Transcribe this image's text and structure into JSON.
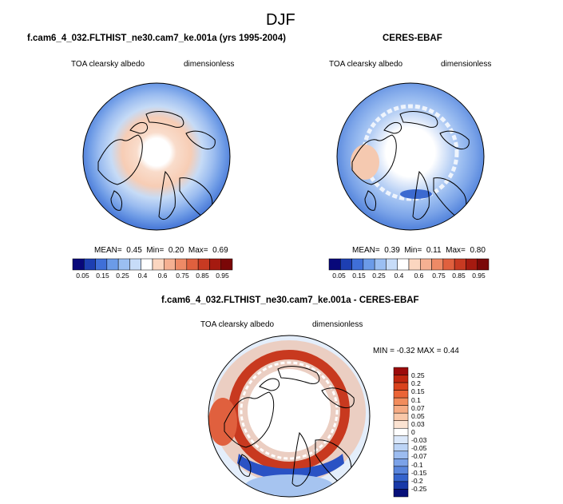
{
  "page_title": "DJF",
  "panels": [
    {
      "title": "f.cam6_4_032.FLTHIST_ne30.cam7_ke.001a (yrs 1995-2004)",
      "variable": "TOA clearsky albedo",
      "units": "dimensionless",
      "stats": {
        "mean_label": "MEAN=",
        "mean": "0.45",
        "min_label": "Min=",
        "min": "0.20",
        "max_label": "Max=",
        "max": "0.69"
      }
    },
    {
      "title": "CERES-EBAF",
      "variable": "TOA clearsky albedo",
      "units": "dimensionless",
      "stats": {
        "mean_label": "MEAN=",
        "mean": "0.39",
        "min_label": "Min=",
        "min": "0.11",
        "max_label": "Max=",
        "max": "0.80"
      }
    },
    {
      "title": "f.cam6_4_032.FLTHIST_ne30.cam7_ke.001a - CERES-EBAF",
      "variable": "TOA clearsky albedo",
      "units": "dimensionless",
      "stats_text": "MIN = -0.32 MAX =  0.44"
    }
  ],
  "colorbar_abs": {
    "labels": [
      "0.05",
      "0.15",
      "0.25",
      "0.4",
      "0.6",
      "0.75",
      "0.85",
      "0.95"
    ],
    "colors": [
      "#08087a",
      "#1d3fb2",
      "#3f6fd8",
      "#6b9be8",
      "#9bbff2",
      "#c7dcf8",
      "#ffffff",
      "#fbd6c0",
      "#f5b092",
      "#ee8a66",
      "#e0603e",
      "#c83a22",
      "#a51a10",
      "#7a0707"
    ]
  },
  "colorbar_diff": {
    "labels": [
      "0.25",
      "0.2",
      "0.15",
      "0.1",
      "0.07",
      "0.05",
      "0.03",
      "0",
      "-0.03",
      "-0.05",
      "-0.07",
      "-0.1",
      "-0.15",
      "-0.2",
      "-0.25"
    ],
    "colors": [
      "#9c0b0b",
      "#c0260f",
      "#d9421c",
      "#eb6436",
      "#f28c5c",
      "#f6ab83",
      "#f9c8a9",
      "#fbe3d2",
      "#ffffff",
      "#dbe8fa",
      "#bcd4f6",
      "#9cbcf0",
      "#7ba2e8",
      "#5985dc",
      "#3463cc",
      "#1839a8",
      "#07107a"
    ]
  },
  "chart_data": [
    {
      "type": "heatmap",
      "title": "f.cam6_4_032.FLTHIST_ne30.cam7_ke.001a (yrs 1995-2004)",
      "projection": "north polar stereographic",
      "variable": "TOA clearsky albedo",
      "units": "dimensionless",
      "mean": 0.45,
      "min": 0.2,
      "max": 0.69,
      "levels": [
        0.05,
        0.1,
        0.15,
        0.2,
        0.25,
        0.3,
        0.4,
        0.5,
        0.6,
        0.7,
        0.75,
        0.8,
        0.85,
        0.9,
        0.95
      ]
    },
    {
      "type": "heatmap",
      "title": "CERES-EBAF",
      "projection": "north polar stereographic",
      "variable": "TOA clearsky albedo",
      "units": "dimensionless",
      "mean": 0.39,
      "min": 0.11,
      "max": 0.8,
      "levels": [
        0.05,
        0.1,
        0.15,
        0.2,
        0.25,
        0.3,
        0.4,
        0.5,
        0.6,
        0.7,
        0.75,
        0.8,
        0.85,
        0.9,
        0.95
      ]
    },
    {
      "type": "heatmap",
      "title": "f.cam6_4_032.FLTHIST_ne30.cam7_ke.001a - CERES-EBAF",
      "projection": "north polar stereographic",
      "variable": "TOA clearsky albedo",
      "units": "dimensionless",
      "min": -0.32,
      "max": 0.44,
      "levels": [
        -0.25,
        -0.2,
        -0.15,
        -0.1,
        -0.07,
        -0.05,
        -0.03,
        0,
        0.03,
        0.05,
        0.07,
        0.1,
        0.15,
        0.2,
        0.25
      ]
    }
  ]
}
